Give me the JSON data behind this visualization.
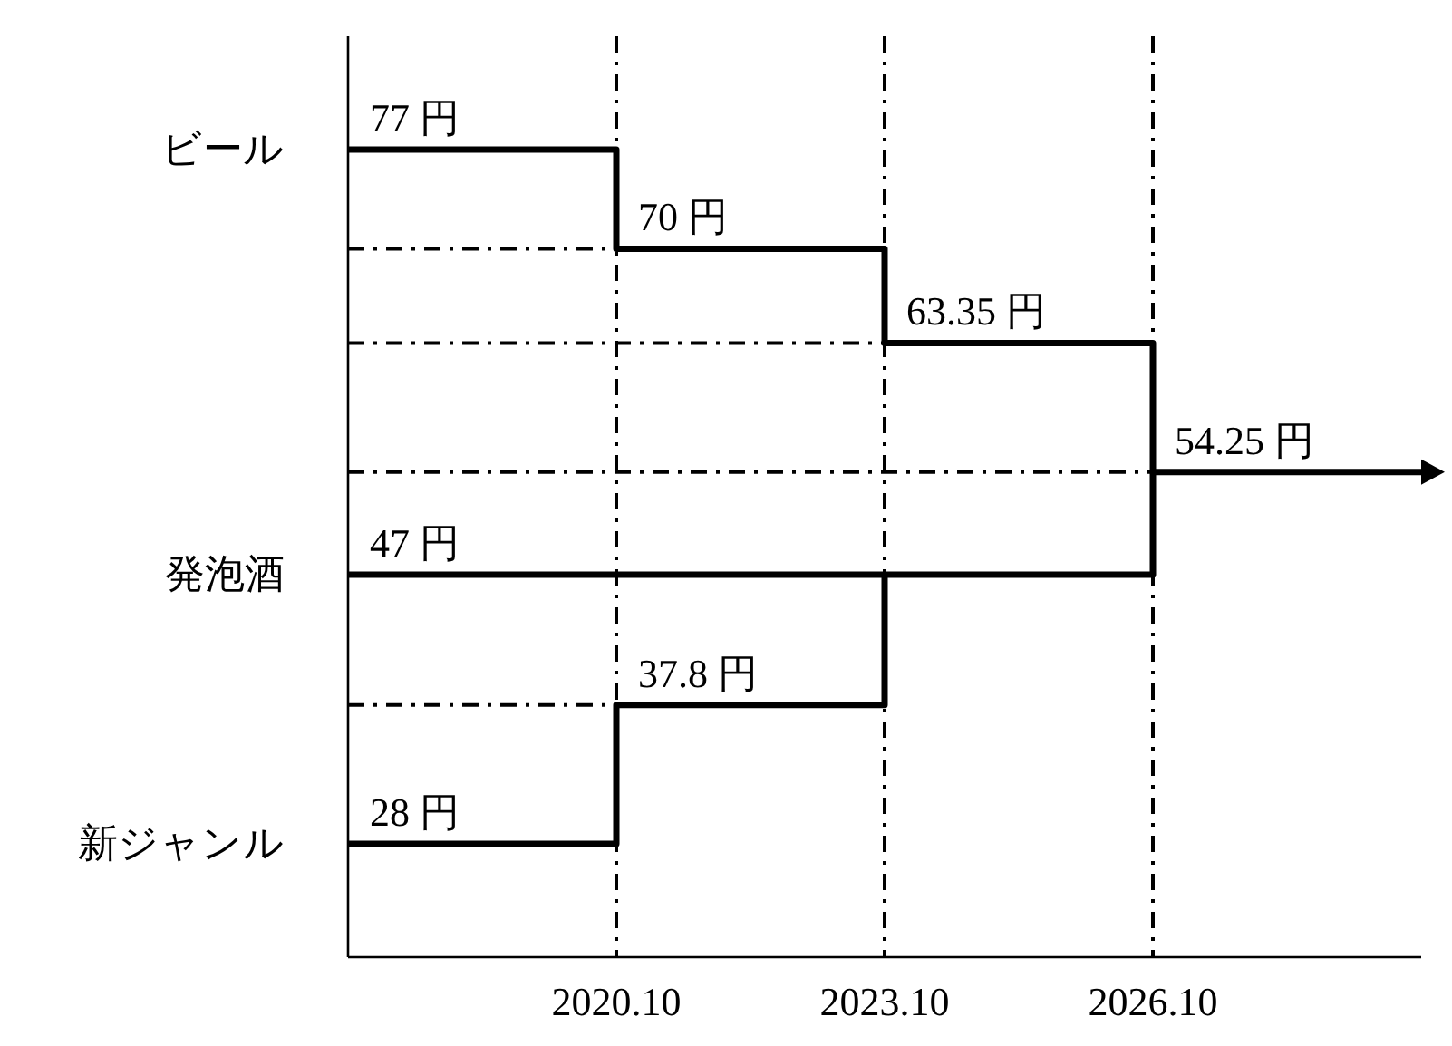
{
  "chart_data": {
    "type": "step",
    "categories": [
      null,
      "2020.10",
      "2023.10",
      "2026.10",
      null
    ],
    "series": [
      {
        "name": "ビール",
        "color": "#000000",
        "values": [
          77,
          70,
          63.35,
          54.25,
          54.25
        ],
        "value_labels": [
          "77 円",
          "70 円",
          "63.35 円",
          "54.25 円",
          null
        ]
      },
      {
        "name": "発泡酒",
        "color": "#000000",
        "values": [
          47,
          47,
          47,
          54.25,
          null
        ],
        "value_labels": [
          "47 円",
          null,
          null,
          null,
          null
        ]
      },
      {
        "name": "新ジャンル",
        "color": "#000000",
        "values": [
          28,
          37.8,
          47,
          null,
          null
        ],
        "value_labels": [
          "28 円",
          "37.8 円",
          null,
          null,
          null
        ]
      }
    ],
    "ylim": [
      20,
      85
    ],
    "tick_labels": "x",
    "ref_lines": [
      {
        "axis": "x",
        "value": "2020.10",
        "line_style": "dashed",
        "color": "#000000"
      },
      {
        "axis": "x",
        "value": "2023.10",
        "line_style": "dashed",
        "color": "#000000"
      },
      {
        "axis": "x",
        "value": "2026.10",
        "line_style": "dashed",
        "color": "#000000"
      },
      {
        "axis": "y",
        "value": 70,
        "line_style": "dashed",
        "color": "#000000"
      },
      {
        "axis": "y",
        "value": 63.35,
        "line_style": "dashed",
        "color": "#000000"
      },
      {
        "axis": "y",
        "value": 54.25,
        "line_style": "dashed",
        "color": "#000000"
      },
      {
        "axis": "y",
        "value": 37.8,
        "line_style": "dashed",
        "color": "#000000"
      }
    ]
  }
}
